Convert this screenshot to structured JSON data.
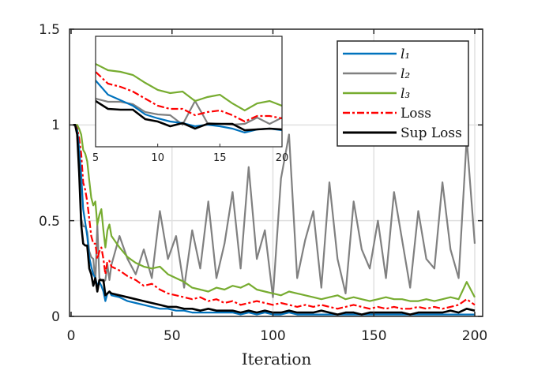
{
  "chart_data": {
    "type": "line",
    "title": "",
    "xlabel": "Iteration",
    "ylabel": "",
    "xlim": [
      0,
      204
    ],
    "ylim": [
      0,
      1.5
    ],
    "xticks": [
      "0",
      "50",
      "100",
      "150",
      "200"
    ],
    "yticks": [
      "0",
      "0.5",
      "1",
      "1.5"
    ],
    "grid": true,
    "legend_position": "top-right",
    "x": [
      1,
      2,
      3,
      4,
      5,
      6,
      7,
      8,
      9,
      10,
      11,
      12,
      13,
      14,
      15,
      16,
      17,
      18,
      19,
      20,
      24,
      28,
      32,
      36,
      40,
      44,
      48,
      52,
      56,
      60,
      64,
      68,
      72,
      76,
      80,
      84,
      88,
      92,
      96,
      100,
      104,
      108,
      112,
      116,
      120,
      124,
      128,
      132,
      136,
      140,
      144,
      148,
      152,
      156,
      160,
      164,
      168,
      172,
      176,
      180,
      184,
      188,
      192,
      196,
      200
    ],
    "series": [
      {
        "name": "l₂",
        "color": "#808080",
        "style": "solid",
        "values": [
          1,
          1,
          0.98,
          0.85,
          0.51,
          0.47,
          0.47,
          0.44,
          0.34,
          0.31,
          0.3,
          0.18,
          0.48,
          0.2,
          0.19,
          0.18,
          0.19,
          0.27,
          0.19,
          0.27,
          0.42,
          0.3,
          0.22,
          0.35,
          0.2,
          0.55,
          0.3,
          0.42,
          0.15,
          0.45,
          0.25,
          0.6,
          0.2,
          0.38,
          0.65,
          0.25,
          0.78,
          0.3,
          0.45,
          0.1,
          0.72,
          0.95,
          0.2,
          0.4,
          0.55,
          0.15,
          0.7,
          0.3,
          0.12,
          0.6,
          0.35,
          0.25,
          0.5,
          0.2,
          0.65,
          0.4,
          0.15,
          0.55,
          0.3,
          0.25,
          0.7,
          0.35,
          0.2,
          0.93,
          0.38
        ]
      },
      {
        "name": "l₃",
        "color": "#77AC30",
        "style": "solid",
        "values": [
          1,
          1,
          1,
          0.98,
          0.95,
          0.87,
          0.85,
          0.81,
          0.71,
          0.62,
          0.58,
          0.6,
          0.48,
          0.53,
          0.56,
          0.45,
          0.36,
          0.45,
          0.48,
          0.42,
          0.36,
          0.31,
          0.28,
          0.26,
          0.25,
          0.26,
          0.22,
          0.2,
          0.18,
          0.15,
          0.14,
          0.13,
          0.15,
          0.14,
          0.16,
          0.15,
          0.17,
          0.14,
          0.13,
          0.12,
          0.11,
          0.13,
          0.12,
          0.11,
          0.1,
          0.09,
          0.1,
          0.11,
          0.09,
          0.1,
          0.09,
          0.08,
          0.09,
          0.1,
          0.09,
          0.09,
          0.08,
          0.08,
          0.09,
          0.08,
          0.09,
          0.1,
          0.09,
          0.18,
          0.1
        ]
      },
      {
        "name": "Loss",
        "color": "#FF0000",
        "style": "dashdot",
        "values": [
          1,
          1,
          0.98,
          0.93,
          0.85,
          0.7,
          0.66,
          0.6,
          0.51,
          0.42,
          0.38,
          0.38,
          0.3,
          0.34,
          0.36,
          0.3,
          0.22,
          0.29,
          0.29,
          0.26,
          0.24,
          0.21,
          0.19,
          0.16,
          0.17,
          0.14,
          0.12,
          0.11,
          0.1,
          0.09,
          0.1,
          0.08,
          0.09,
          0.07,
          0.08,
          0.06,
          0.07,
          0.08,
          0.07,
          0.06,
          0.07,
          0.06,
          0.05,
          0.06,
          0.05,
          0.06,
          0.05,
          0.04,
          0.05,
          0.06,
          0.05,
          0.04,
          0.05,
          0.04,
          0.05,
          0.04,
          0.04,
          0.05,
          0.04,
          0.05,
          0.04,
          0.05,
          0.06,
          0.09,
          0.06
        ]
      },
      {
        "name": "l₁",
        "color": "#0072BD",
        "style": "solid",
        "values": [
          1,
          1,
          0.97,
          0.88,
          0.74,
          0.56,
          0.49,
          0.42,
          0.31,
          0.26,
          0.22,
          0.2,
          0.16,
          0.18,
          0.16,
          0.13,
          0.08,
          0.12,
          0.13,
          0.11,
          0.1,
          0.08,
          0.07,
          0.06,
          0.05,
          0.04,
          0.04,
          0.03,
          0.03,
          0.02,
          0.02,
          0.02,
          0.02,
          0.02,
          0.02,
          0.01,
          0.02,
          0.01,
          0.02,
          0.01,
          0.01,
          0.02,
          0.01,
          0.01,
          0.01,
          0.01,
          0.01,
          0.01,
          0.01,
          0.01,
          0.01,
          0.01,
          0.01,
          0.01,
          0.01,
          0.01,
          0.01,
          0.01,
          0.01,
          0.01,
          0.01,
          0.01,
          0.01,
          0.01,
          0.01
        ]
      },
      {
        "name": "Sup Loss",
        "color": "#000000",
        "style": "solid",
        "values": [
          1,
          1,
          0.95,
          0.75,
          0.48,
          0.38,
          0.37,
          0.37,
          0.25,
          0.22,
          0.16,
          0.2,
          0.13,
          0.19,
          0.19,
          0.19,
          0.11,
          0.12,
          0.13,
          0.12,
          0.11,
          0.1,
          0.09,
          0.08,
          0.07,
          0.06,
          0.05,
          0.05,
          0.04,
          0.04,
          0.03,
          0.04,
          0.03,
          0.03,
          0.03,
          0.02,
          0.03,
          0.02,
          0.03,
          0.02,
          0.02,
          0.03,
          0.02,
          0.02,
          0.02,
          0.03,
          0.02,
          0.01,
          0.02,
          0.02,
          0.01,
          0.02,
          0.02,
          0.02,
          0.02,
          0.02,
          0.01,
          0.02,
          0.02,
          0.02,
          0.02,
          0.03,
          0.02,
          0.04,
          0.03
        ]
      }
    ],
    "legend_order": [
      "l₁",
      "l₂",
      "l₃",
      "Loss",
      "Sup Loss"
    ],
    "inset": {
      "xlim": [
        5,
        20
      ],
      "ylim": [
        -0.1,
        1.3
      ],
      "xticks": [
        "5",
        "10",
        "15",
        "20"
      ]
    }
  }
}
